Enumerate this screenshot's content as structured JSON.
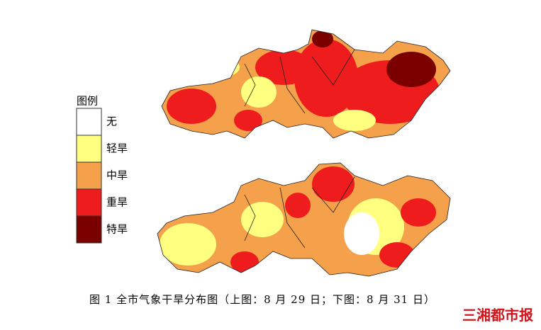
{
  "legend": {
    "title": "图例",
    "items": [
      {
        "label": "无",
        "color": "#ffffff"
      },
      {
        "label": "轻旱",
        "color": "#ffff80"
      },
      {
        "label": "中旱",
        "color": "#f5a04a"
      },
      {
        "label": "重旱",
        "color": "#ee1c1c"
      },
      {
        "label": "特旱",
        "color": "#7a0000"
      }
    ]
  },
  "caption": "图 1  全市气象干旱分布图（上图：8 月 29 日；下图：8 月 31 日）",
  "watermark": "三湘都市报"
}
